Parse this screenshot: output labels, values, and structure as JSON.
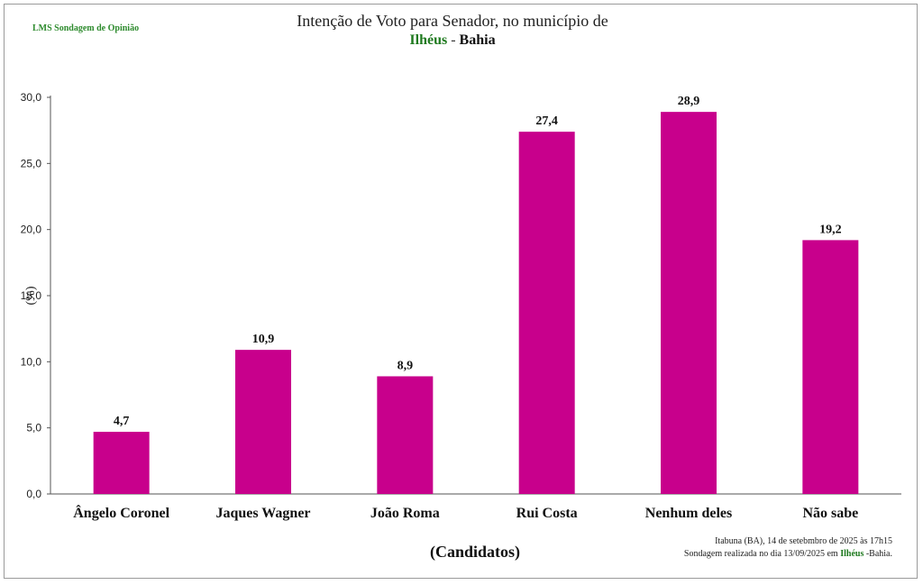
{
  "brand": "LMS Sondagem  de Opinião",
  "title_line1": "Intenção de Voto para Senador, no município de",
  "title_city": "Ilhéus",
  "title_sep": "-",
  "title_state": "Bahia",
  "footer": {
    "line1": "Itabuna (BA),  14  de setebmbro de 2025  às 17h15",
    "line2_pre": "Sondagem realizada no dia 13/09/2025  em ",
    "line2_city": "Ilhéus",
    "line2_post": " -Bahia."
  },
  "chart_data": {
    "type": "bar",
    "title": "Intenção de Voto para Senador, no município de Ilhéus - Bahia",
    "xlabel": "(Candidatos)",
    "ylabel": "(%)",
    "ylim": [
      0,
      30
    ],
    "yticks": [
      "0,0",
      "5,0",
      "10,0",
      "15,0",
      "20,0",
      "25,0",
      "30,0"
    ],
    "categories": [
      "Ângelo Coronel",
      "Jaques Wagner",
      "João Roma",
      "Rui Costa",
      "Nenhum deles",
      "Não sabe"
    ],
    "values": [
      4.7,
      10.9,
      8.9,
      27.4,
      28.9,
      19.2
    ],
    "value_labels": [
      "4,7",
      "10,9",
      "8,9",
      "27,4",
      "28,9",
      "19,2"
    ],
    "bar_color": "#c8008c",
    "grid": false,
    "legend": "none"
  }
}
